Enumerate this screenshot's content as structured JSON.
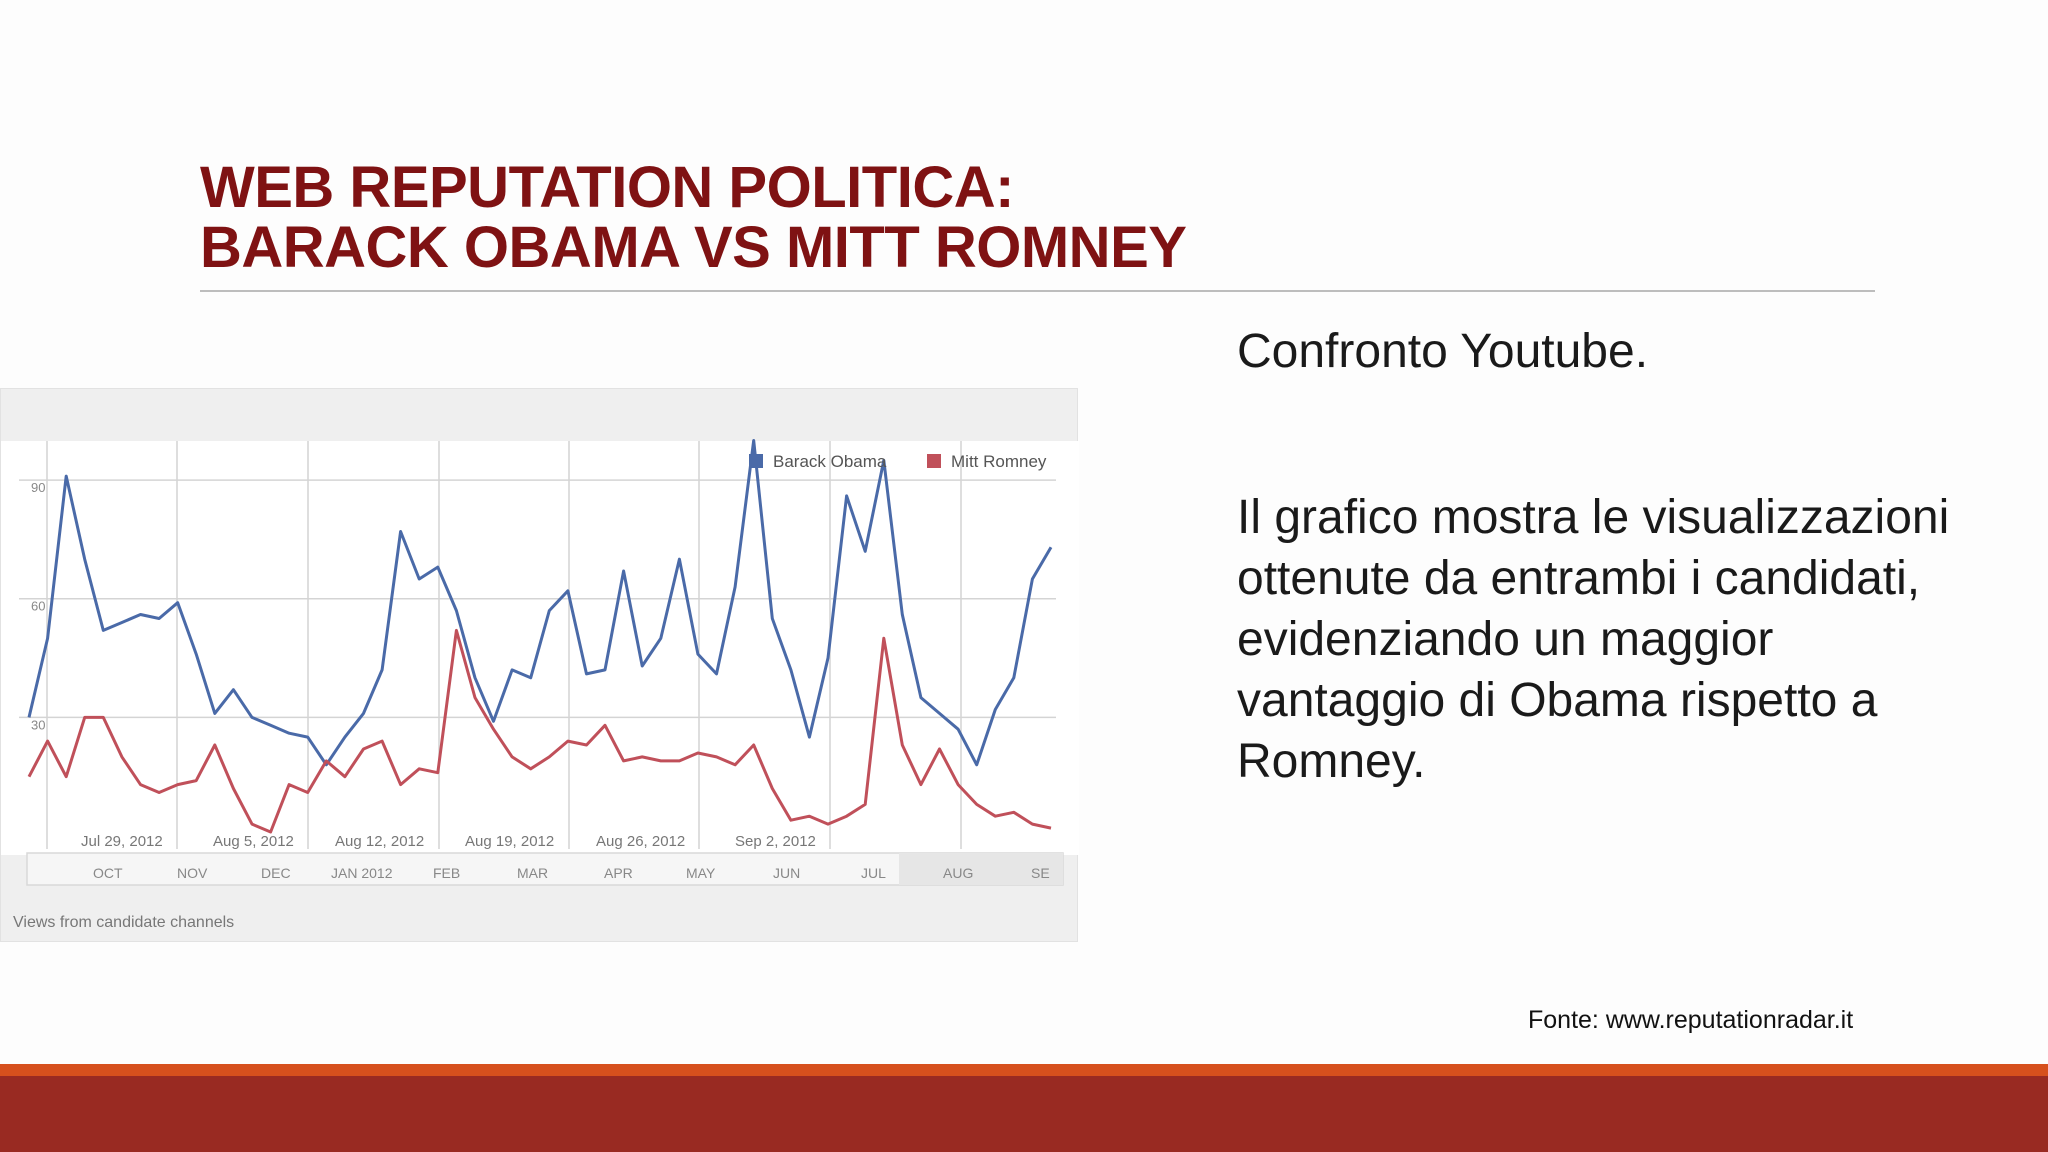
{
  "slide": {
    "title_line1": "WEB REPUTATION POLITICA:",
    "title_line2": "BARACK OBAMA VS MITT ROMNEY",
    "side_heading": "Confronto Youtube.",
    "side_paragraph": "Il grafico mostra le visualizzazioni ottenute da entrambi i candidati, evidenziando un maggior vantaggio di Obama rispetto a Romney.",
    "source": "Fonte: www.reputationradar.it"
  },
  "colors": {
    "title": "#7f1213",
    "obama": "#4a6aa8",
    "romney": "#c0505a",
    "bar_orange": "#d6501d",
    "bar_red": "#992a22"
  },
  "chart_data": {
    "type": "line",
    "caption": "Views from candidate channels",
    "y_ticks": [
      "30",
      "60",
      "90"
    ],
    "ylim": [
      0,
      110
    ],
    "x_date_labels": [
      "Jul 29, 2012",
      "Aug 5, 2012",
      "Aug 12, 2012",
      "Aug 19, 2012",
      "Aug 26, 2012",
      "Sep 2, 2012"
    ],
    "timeline_labels": [
      "OCT",
      "NOV",
      "DEC",
      "JAN 2012",
      "FEB",
      "MAR",
      "APR",
      "MAY",
      "JUN",
      "JUL",
      "AUG",
      "SE"
    ],
    "grid": true,
    "legend_position": "top-right",
    "series": [
      {
        "name": "Barack Obama",
        "values": [
          30,
          50,
          91,
          70,
          52,
          54,
          56,
          55,
          59,
          46,
          31,
          37,
          30,
          28,
          26,
          25,
          18,
          25,
          31,
          42,
          77,
          65,
          68,
          57,
          40,
          29,
          42,
          40,
          57,
          62,
          41,
          42,
          67,
          43,
          50,
          70,
          46,
          41,
          63,
          100,
          55,
          42,
          25,
          45,
          86,
          72,
          95,
          56,
          35,
          31,
          27,
          18,
          32,
          40,
          65,
          73
        ]
      },
      {
        "name": "Mitt Romney",
        "values": [
          15,
          24,
          15,
          30,
          30,
          20,
          13,
          11,
          13,
          14,
          23,
          12,
          3,
          1,
          13,
          11,
          19,
          15,
          22,
          24,
          13,
          17,
          16,
          52,
          35,
          27,
          20,
          17,
          20,
          24,
          23,
          28,
          19,
          20,
          19,
          19,
          21,
          20,
          18,
          23,
          12,
          4,
          5,
          3,
          5,
          8,
          50,
          23,
          13,
          22,
          13,
          8,
          5,
          6,
          3,
          2
        ]
      }
    ]
  }
}
